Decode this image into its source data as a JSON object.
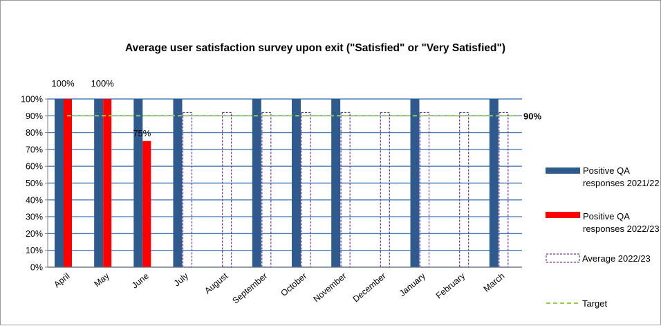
{
  "chart_data": {
    "type": "bar",
    "title": "Average user satisfaction survey upon exit (\"Satisfied\" or \"Very Satisfied\")",
    "categories": [
      "April",
      "May",
      "June",
      "July",
      "August",
      "September",
      "October",
      "November",
      "December",
      "January",
      "February",
      "March"
    ],
    "ylim": [
      0,
      100
    ],
    "yticks": [
      "0%",
      "10%",
      "20%",
      "30%",
      "40%",
      "50%",
      "60%",
      "70%",
      "80%",
      "90%",
      "100%"
    ],
    "grid": true,
    "legend_position": "right",
    "series": [
      {
        "name": "Positive QA responses 2021/22",
        "type": "bar",
        "color": "#2E5A8E",
        "values": [
          100,
          100,
          100,
          100,
          null,
          100,
          100,
          100,
          null,
          100,
          null,
          100
        ]
      },
      {
        "name": "Positive QA responses 2022/23",
        "type": "bar",
        "color": "#FF0000",
        "values": [
          100,
          100,
          75,
          null,
          null,
          null,
          null,
          null,
          null,
          null,
          null,
          null
        ]
      },
      {
        "name": "Average 2022/23",
        "type": "bar",
        "style": "dashed-outline",
        "color": "#7030A0",
        "values": [
          null,
          null,
          null,
          92,
          92,
          92,
          92,
          92,
          92,
          92,
          92,
          92
        ]
      },
      {
        "name": "Target",
        "type": "line",
        "style": "dashed",
        "color": "#92D050",
        "values": [
          90,
          90,
          90,
          90,
          90,
          90,
          90,
          90,
          90,
          90,
          90,
          90
        ]
      }
    ],
    "data_labels": [
      "100%",
      "100%",
      "75%"
    ],
    "target_label": "90%"
  }
}
